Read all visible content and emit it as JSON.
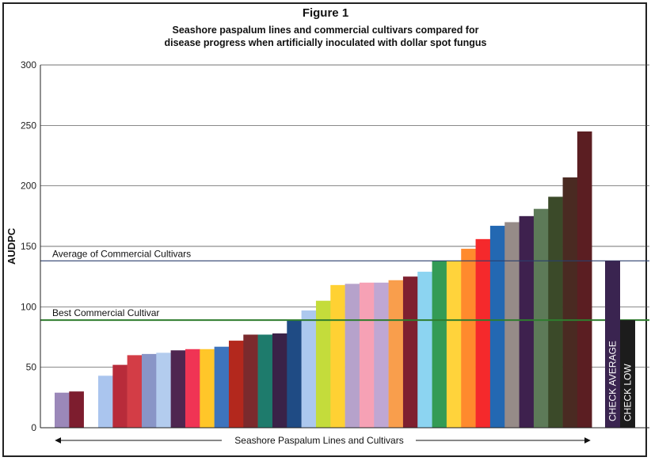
{
  "figure": {
    "number_label": "Figure 1",
    "subtitle_line1": "Seashore paspalum lines and commercial cultivars compared for",
    "subtitle_line2": "disease progress when artificially inoculated with dollar spot fungus"
  },
  "chart_data": {
    "type": "bar",
    "ylabel": "AUDPC",
    "xlabel": "Seashore Paspalum Lines and Cultivars",
    "ylim": [
      0,
      300
    ],
    "yticks": [
      0,
      50,
      100,
      150,
      200,
      250,
      300
    ],
    "grid": true,
    "values": [
      29,
      30,
      0,
      43,
      52,
      60,
      61,
      62,
      64,
      65,
      65,
      67,
      72,
      77,
      77,
      78,
      89,
      97,
      105,
      118,
      119,
      120,
      120,
      122,
      125,
      129,
      138,
      138,
      148,
      156,
      167,
      170,
      175,
      181,
      191,
      207,
      245
    ],
    "colors": [
      "#9b88b9",
      "#7d1d2e",
      "#ffffff",
      "#aac5ee",
      "#b82b3a",
      "#d33d46",
      "#8995c7",
      "#b3ccee",
      "#4f2650",
      "#f03454",
      "#ffc629",
      "#3e74bd",
      "#b3281d",
      "#7b2a2d",
      "#1e7b6c",
      "#3a2248",
      "#1f4b84",
      "#acc8ee",
      "#c4dc3b",
      "#ffd133",
      "#b6a2cb",
      "#f6a1b5",
      "#bfa7d3",
      "#f99e4c",
      "#7e2030",
      "#8cd4f1",
      "#339b55",
      "#ffd33b",
      "#ff8a2d",
      "#f5292c",
      "#2368b2",
      "#968b88",
      "#3e214e",
      "#5d7a58",
      "#3b4a29",
      "#4a2a22",
      "#5b1e22"
    ],
    "reference_lines": [
      {
        "label": "Average of Commercial Cultivars",
        "value": 138,
        "color": "#2b3f6d"
      },
      {
        "label": "Best Commercial Cultivar",
        "value": 89,
        "color": "#2f7d2e"
      }
    ],
    "check_bars": [
      {
        "label": "CHECK AVERAGE",
        "value": 138,
        "color": "#3a2450"
      },
      {
        "label": "CHECK LOW",
        "value": 89,
        "color": "#1c1c1c"
      }
    ]
  }
}
